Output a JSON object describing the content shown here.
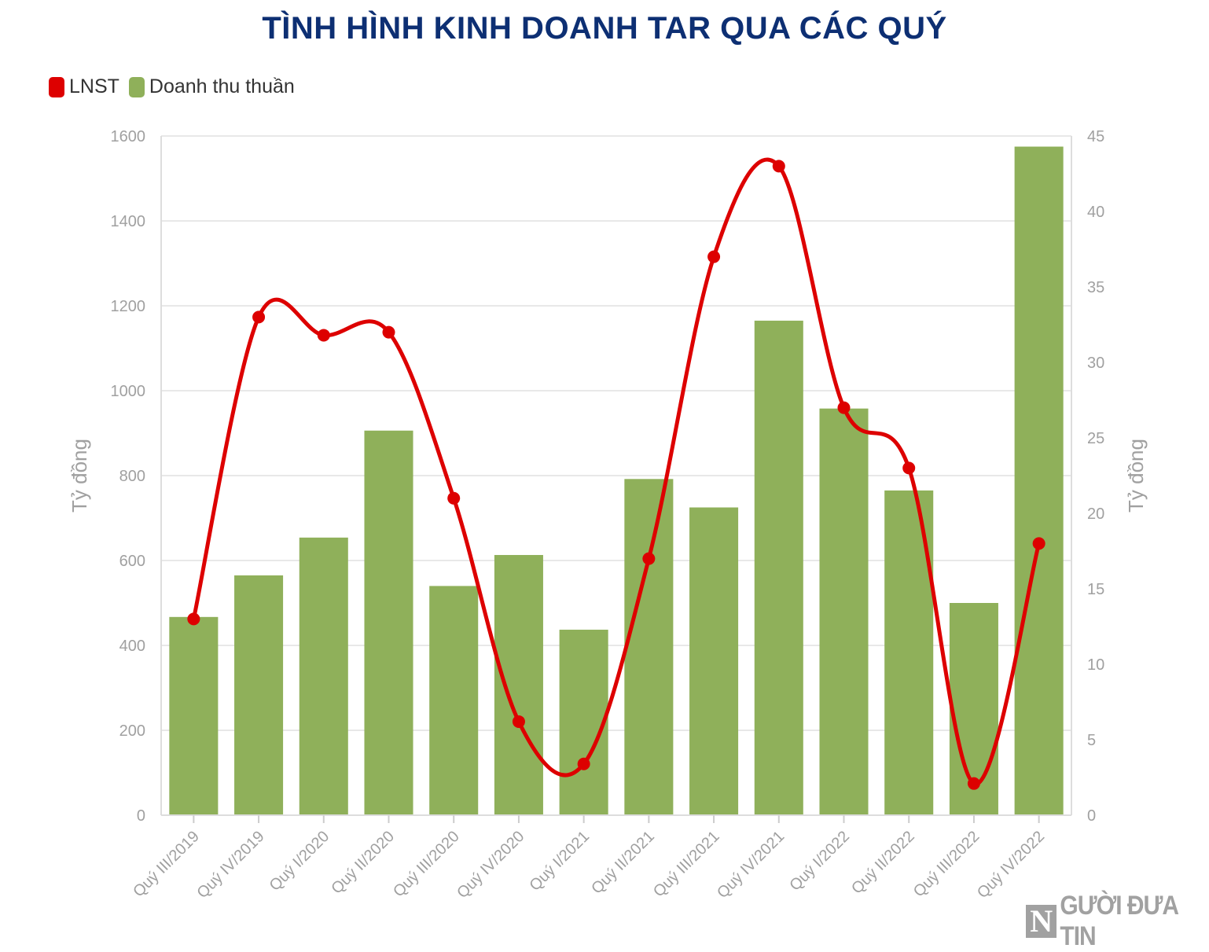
{
  "header": {
    "title": "TÌNH HÌNH KINH DOANH TAR QUA CÁC QUÝ"
  },
  "legend": [
    {
      "label": "LNST",
      "color": "#dd0000"
    },
    {
      "label": "Doanh thu thuần",
      "color": "#8fb05a"
    }
  ],
  "watermark": {
    "logo_letter": "N",
    "text": "GƯỜI ĐƯA TIN"
  },
  "chart_data": {
    "type": "bar",
    "title": "TÌNH HÌNH KINH DOANH TAR QUA CÁC QUÝ",
    "categories": [
      "Quý III/2019",
      "Quý IV/2019",
      "Quý I/2020",
      "Quý II/2020",
      "Quý III/2020",
      "Quý IV/2020",
      "Quý I/2021",
      "Quý II/2021",
      "Quý III/2021",
      "Quý IV/2021",
      "Quý I/2022",
      "Quý II/2022",
      "Quý III/2022",
      "Quý IV/2022"
    ],
    "series": [
      {
        "name": "Doanh thu thuần",
        "type": "bar",
        "axis": "left",
        "color": "#8fb05a",
        "values": [
          467,
          565,
          654,
          906,
          540,
          613,
          437,
          792,
          725,
          1165,
          958,
          765,
          500,
          1575
        ]
      },
      {
        "name": "LNST",
        "type": "line",
        "smooth": true,
        "axis": "right",
        "color": "#dd0000",
        "values": [
          13,
          33,
          31.8,
          32,
          21,
          6.2,
          3.4,
          17,
          37,
          43,
          27,
          23,
          2.1,
          18
        ]
      }
    ],
    "ylabel": "Tỷ đồng",
    "y2label": "Tỷ đồng",
    "ylim": [
      0,
      1600
    ],
    "y2lim": [
      0,
      45
    ],
    "yticks": [
      0,
      200,
      400,
      600,
      800,
      1000,
      1200,
      1400,
      1600
    ],
    "y2ticks": [
      0,
      5,
      10,
      15,
      20,
      25,
      30,
      35,
      40,
      45
    ],
    "grid": true,
    "legend_position": "top-left"
  }
}
